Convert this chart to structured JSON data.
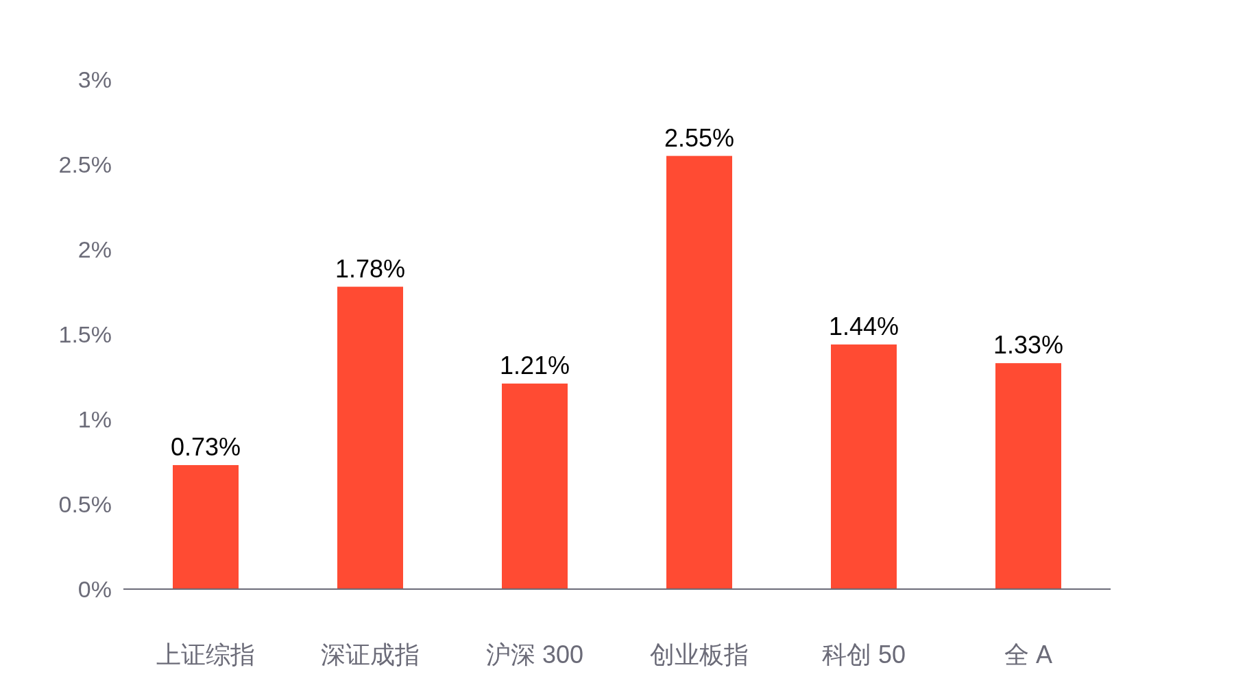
{
  "chart_data": {
    "type": "bar",
    "categories": [
      "上证综指",
      "深证成指",
      "沪深 300",
      "创业板指",
      "科创 50",
      "全 A"
    ],
    "values": [
      0.73,
      1.78,
      1.21,
      2.55,
      1.44,
      1.33
    ],
    "value_labels": [
      "0.73%",
      "1.78%",
      "1.21%",
      "2.55%",
      "1.44%",
      "1.33%"
    ],
    "color": "#ff4b33",
    "ylim": [
      0,
      3
    ],
    "yticks": [
      {
        "value": 0,
        "label": "0%"
      },
      {
        "value": 0.5,
        "label": "0.5%"
      },
      {
        "value": 1,
        "label": "1%"
      },
      {
        "value": 1.5,
        "label": "1.5%"
      },
      {
        "value": 2,
        "label": "2%"
      },
      {
        "value": 2.5,
        "label": "2.5%"
      },
      {
        "value": 3,
        "label": "3%"
      }
    ],
    "grid": false
  }
}
